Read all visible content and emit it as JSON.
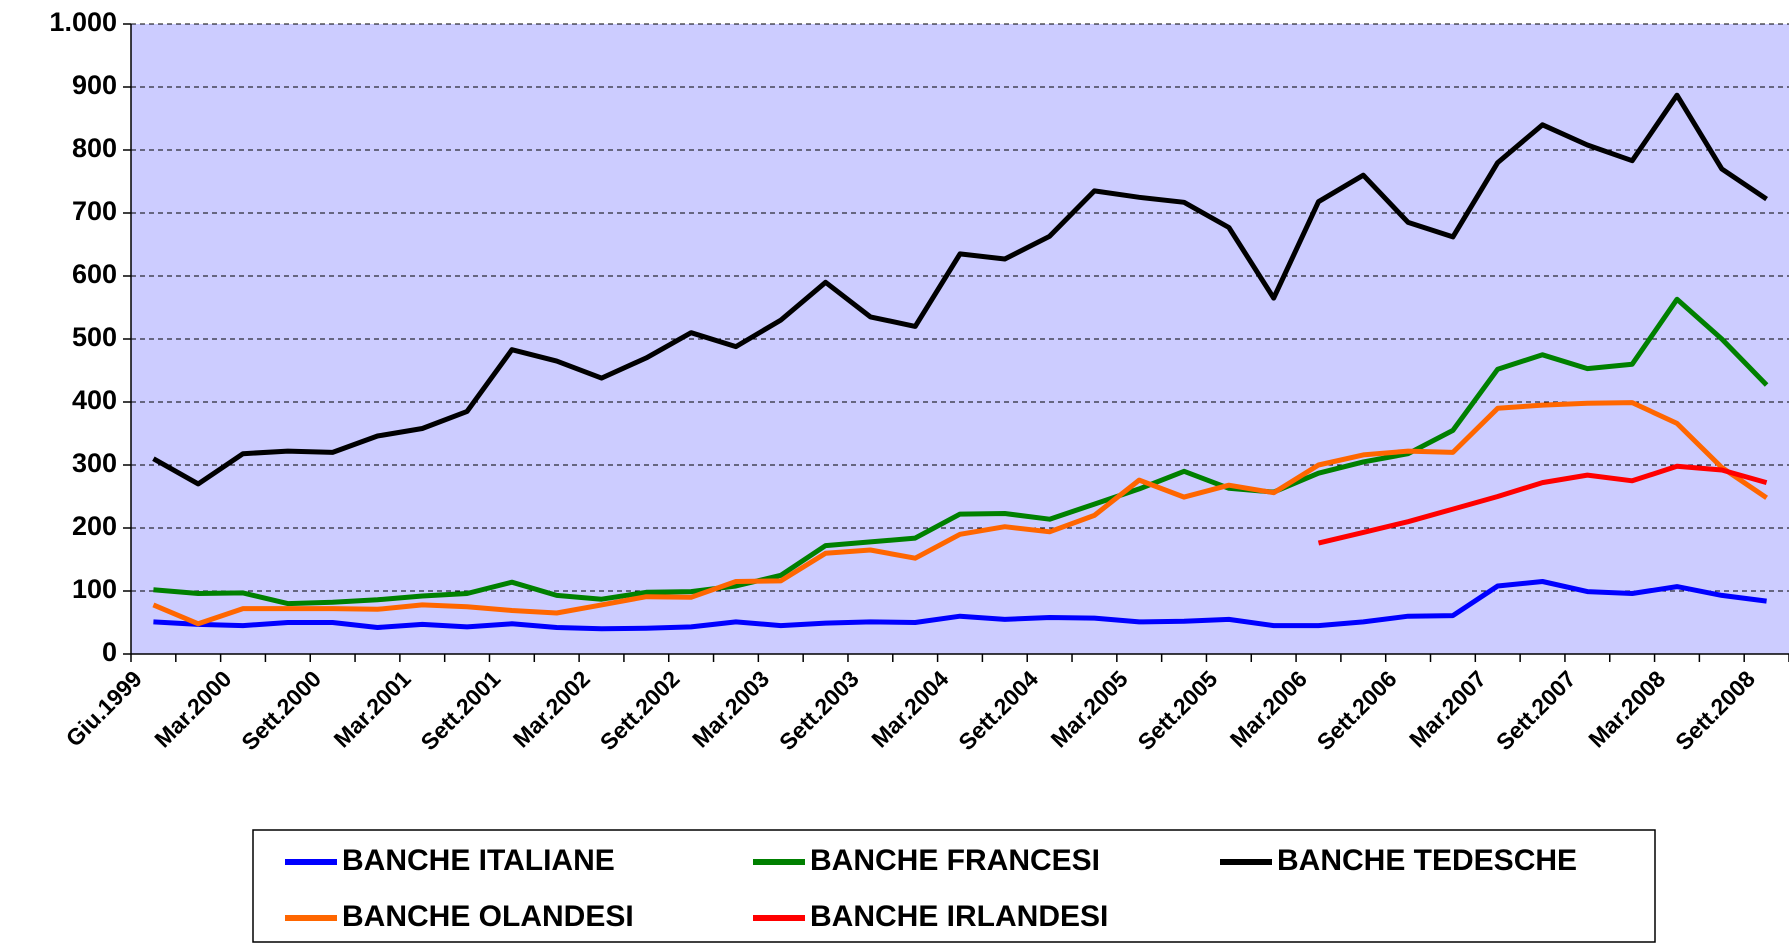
{
  "chart_data": {
    "type": "line",
    "categories": [
      "Giu.1999",
      null,
      "Mar.2000",
      null,
      "Sett.2000",
      null,
      "Mar.2001",
      null,
      "Sett.2001",
      null,
      "Mar.2002",
      null,
      "Sett.2002",
      null,
      "Mar.2003",
      null,
      "Sett.2003",
      null,
      "Mar.2004",
      null,
      "Sett.2004",
      null,
      "Mar.2005",
      null,
      "Sett.2005",
      null,
      "Mar.2006",
      null,
      "Sett.2006",
      null,
      "Mar.2007",
      null,
      "Sett.2007",
      null,
      "Mar.2008",
      null,
      "Sett.2008"
    ],
    "ylim": [
      0,
      1000
    ],
    "yticks": [
      0,
      100,
      200,
      300,
      400,
      500,
      600,
      700,
      800,
      900,
      {
        "value": 1000,
        "label": "1.000"
      }
    ],
    "grid": true,
    "series": [
      {
        "name": "BANCHE ITALIANE",
        "color": "#0000ff",
        "values": [
          51,
          47,
          45,
          50,
          50,
          42,
          47,
          43,
          48,
          42,
          40,
          41,
          43,
          51,
          45,
          49,
          51,
          50,
          60,
          55,
          58,
          57,
          51,
          52,
          55,
          45,
          45,
          51,
          60,
          61,
          108,
          115,
          99,
          96,
          107,
          93,
          84
        ]
      },
      {
        "name": "BANCHE FRANCESI",
        "color": "#008000",
        "values": [
          102,
          96,
          97,
          80,
          82,
          86,
          92,
          96,
          114,
          93,
          87,
          98,
          99,
          108,
          125,
          172,
          178,
          184,
          222,
          223,
          214,
          238,
          262,
          290,
          263,
          257,
          287,
          305,
          318,
          355,
          452,
          475,
          453,
          460,
          563,
          500,
          427
        ]
      },
      {
        "name": "BANCHE TEDESCHE",
        "color": "#000000",
        "values": [
          310,
          270,
          318,
          322,
          320,
          346,
          358,
          385,
          483,
          465,
          438,
          470,
          510,
          488,
          530,
          590,
          535,
          520,
          635,
          627,
          663,
          735,
          725,
          717,
          677,
          565,
          718,
          760,
          685,
          662,
          780,
          840,
          808,
          783,
          887,
          770,
          722
        ]
      },
      {
        "name": "BANCHE OLANDESI",
        "color": "#ff6600",
        "values": [
          78,
          48,
          72,
          72,
          72,
          71,
          78,
          75,
          69,
          65,
          78,
          91,
          90,
          115,
          116,
          160,
          165,
          152,
          190,
          202,
          194,
          220,
          276,
          249,
          268,
          256,
          300,
          316,
          322,
          320,
          390,
          395,
          398,
          399,
          366,
          296,
          248
        ]
      },
      {
        "name": "BANCHE IRLANDESI",
        "color": "#ff0000",
        "values": [
          null,
          null,
          null,
          null,
          null,
          null,
          null,
          null,
          null,
          null,
          null,
          null,
          null,
          null,
          null,
          null,
          null,
          null,
          null,
          null,
          null,
          null,
          null,
          null,
          null,
          null,
          176,
          193,
          210,
          230,
          250,
          272,
          284,
          275,
          298,
          292,
          272
        ]
      }
    ]
  }
}
